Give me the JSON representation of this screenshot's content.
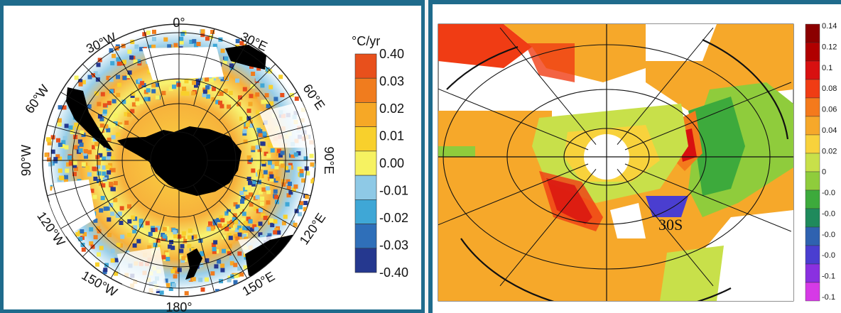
{
  "left_map": {
    "colorbar": {
      "unit": "°C/yr",
      "labels": [
        "0.40",
        "0.03",
        "0.02",
        "0.01",
        "0.00",
        "-0.01",
        "-0.02",
        "-0.03",
        "-0.40"
      ],
      "colors": [
        "#e8501c",
        "#f07c1e",
        "#f6a826",
        "#f8d02c",
        "#f6f261",
        "#8ec9e6",
        "#3fa7d6",
        "#2f6fb9",
        "#25388f"
      ]
    },
    "lon_labels": {
      "top": "0°",
      "tr1": "30°E",
      "tr2": "60°E",
      "right": "90°E",
      "br1": "120°E",
      "br2": "150°E",
      "bottom": "180°",
      "bl1": "150°W",
      "bl2": "120°W",
      "left": "90°W",
      "tl2": "60°W",
      "tl1": "30°W"
    }
  },
  "right_map": {
    "colorbar": {
      "labels": [
        "0.14",
        "0.12",
        "0.1",
        "0.08",
        "0.06",
        "0.04",
        "0.02",
        "0",
        "-0.0",
        "-0.0",
        "-0.0",
        "-0.0",
        "-0.1",
        "-0.1"
      ],
      "colors": [
        "#8b0000",
        "#b00000",
        "#d81010",
        "#f03c14",
        "#f47a1c",
        "#f6a82a",
        "#f8d23c",
        "#c8e04a",
        "#8fcc3c",
        "#3daa3c",
        "#1f8a5c",
        "#2f62b0",
        "#4a3ed0",
        "#8a30e0",
        "#d63ae6"
      ]
    },
    "annotation": "30S"
  },
  "colors": {
    "frame": "#1f6b8c",
    "land": "#000000"
  }
}
